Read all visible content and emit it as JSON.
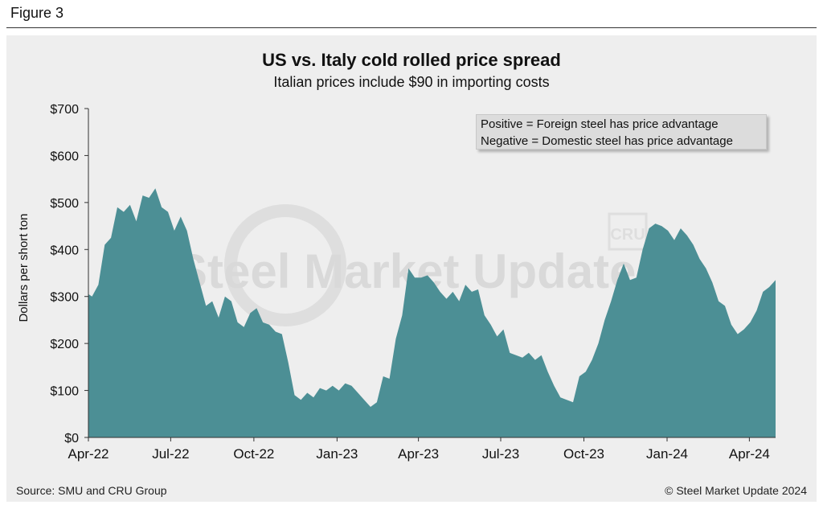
{
  "figure_label": "Figure 3",
  "source_note": "Source: SMU and CRU Group",
  "copyright": "© Steel Market Update 2024",
  "watermark": {
    "text": "Steel Market Update",
    "badge": "CRU"
  },
  "legend_note": {
    "line1": "Positive = Foreign steel has price advantage",
    "line2": "Negative = Domestic steel has price advantage"
  },
  "colors": {
    "area_fill": "#4c8f95",
    "panel_bg": "#eeeeee"
  },
  "chart_data": {
    "type": "area",
    "title": "US vs. Italy cold rolled price spread",
    "subtitle": "Italian prices include $90 in importing costs",
    "xlabel": "",
    "ylabel": "Dollars per short ton",
    "ylim": [
      0,
      700
    ],
    "yticks": [
      "$0",
      "$100",
      "$200",
      "$300",
      "$400",
      "$500",
      "$600",
      "$700"
    ],
    "x_range": [
      "2022-04-01",
      "2024-04-30"
    ],
    "xticks": [
      {
        "date": "2022-04-01",
        "label": "Apr-22"
      },
      {
        "date": "2022-07-01",
        "label": "Jul-22"
      },
      {
        "date": "2022-10-01",
        "label": "Oct-22"
      },
      {
        "date": "2023-01-01",
        "label": "Jan-23"
      },
      {
        "date": "2023-04-01",
        "label": "Apr-23"
      },
      {
        "date": "2023-07-01",
        "label": "Jul-23"
      },
      {
        "date": "2023-10-01",
        "label": "Oct-23"
      },
      {
        "date": "2024-01-01",
        "label": "Jan-24"
      },
      {
        "date": "2024-04-01",
        "label": "Apr-24"
      }
    ],
    "grid": false,
    "series": [
      {
        "x": [
          "2022-04-01",
          "2022-04-05",
          "2022-04-12",
          "2022-04-19",
          "2022-04-26",
          "2022-05-03",
          "2022-05-10",
          "2022-05-17",
          "2022-05-24",
          "2022-05-31",
          "2022-06-07",
          "2022-06-14",
          "2022-06-21",
          "2022-06-28",
          "2022-07-05",
          "2022-07-12",
          "2022-07-19",
          "2022-07-26",
          "2022-08-02",
          "2022-08-09",
          "2022-08-16",
          "2022-08-23",
          "2022-08-30",
          "2022-09-06",
          "2022-09-13",
          "2022-09-20",
          "2022-09-27",
          "2022-10-04",
          "2022-10-11",
          "2022-10-18",
          "2022-10-25",
          "2022-11-01",
          "2022-11-08",
          "2022-11-15",
          "2022-11-22",
          "2022-11-29",
          "2022-12-06",
          "2022-12-13",
          "2022-12-20",
          "2022-12-27",
          "2023-01-03",
          "2023-01-10",
          "2023-01-17",
          "2023-01-24",
          "2023-01-31",
          "2023-02-07",
          "2023-02-14",
          "2023-02-21",
          "2023-02-28",
          "2023-03-07",
          "2023-03-14",
          "2023-03-21",
          "2023-03-28",
          "2023-04-04",
          "2023-04-11",
          "2023-04-18",
          "2023-04-25",
          "2023-05-02",
          "2023-05-09",
          "2023-05-16",
          "2023-05-23",
          "2023-05-30",
          "2023-06-06",
          "2023-06-13",
          "2023-06-20",
          "2023-06-27",
          "2023-07-04",
          "2023-07-11",
          "2023-07-18",
          "2023-07-25",
          "2023-08-01",
          "2023-08-08",
          "2023-08-15",
          "2023-08-22",
          "2023-08-29",
          "2023-09-05",
          "2023-09-12",
          "2023-09-19",
          "2023-09-26",
          "2023-10-03",
          "2023-10-10",
          "2023-10-17",
          "2023-10-24",
          "2023-10-31",
          "2023-11-07",
          "2023-11-14",
          "2023-11-21",
          "2023-11-28",
          "2023-12-05",
          "2023-12-12",
          "2023-12-19",
          "2023-12-26",
          "2024-01-02",
          "2024-01-09",
          "2024-01-16",
          "2024-01-23",
          "2024-01-30",
          "2024-02-06",
          "2024-02-13",
          "2024-02-20",
          "2024-02-27",
          "2024-03-05",
          "2024-03-12",
          "2024-03-19",
          "2024-03-26",
          "2024-04-02",
          "2024-04-09",
          "2024-04-16",
          "2024-04-23",
          "2024-04-30"
        ],
        "values": [
          305,
          300,
          325,
          410,
          425,
          490,
          480,
          495,
          460,
          515,
          510,
          530,
          490,
          480,
          440,
          470,
          440,
          380,
          330,
          280,
          290,
          255,
          300,
          290,
          245,
          235,
          265,
          275,
          245,
          240,
          225,
          220,
          160,
          90,
          80,
          95,
          85,
          105,
          100,
          110,
          100,
          115,
          110,
          95,
          80,
          65,
          75,
          130,
          125,
          210,
          260,
          360,
          340,
          340,
          345,
          330,
          310,
          295,
          310,
          290,
          325,
          310,
          315,
          260,
          240,
          215,
          230,
          180,
          175,
          170,
          180,
          165,
          175,
          140,
          110,
          85,
          80,
          75,
          130,
          140,
          165,
          200,
          250,
          290,
          335,
          370,
          335,
          340,
          400,
          445,
          455,
          450,
          440,
          420,
          445,
          430,
          410,
          380,
          360,
          330,
          290,
          280,
          240,
          220,
          230,
          245,
          270,
          310,
          320,
          335
        ]
      }
    ]
  }
}
